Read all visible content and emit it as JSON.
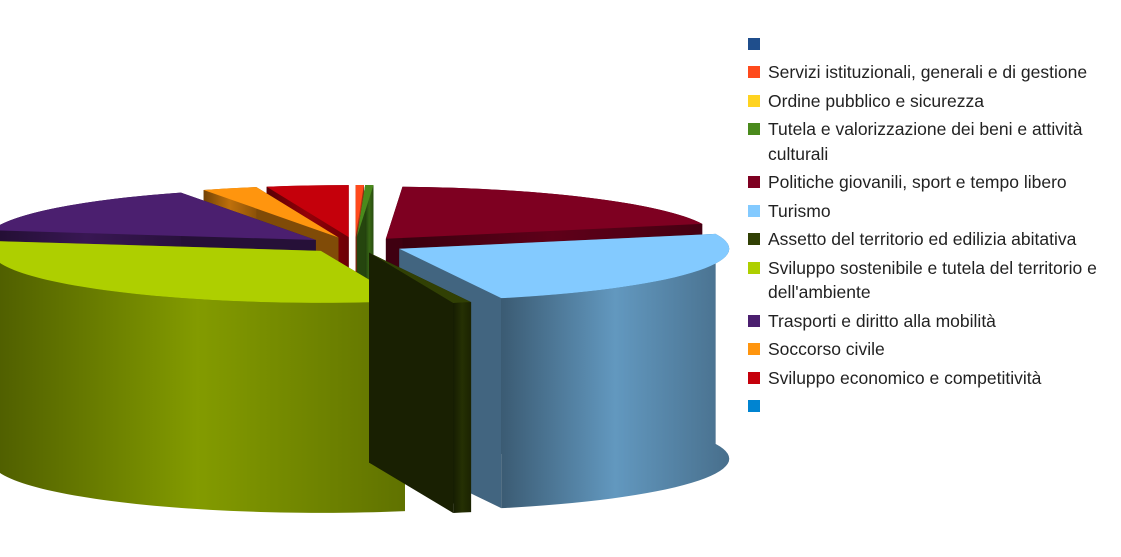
{
  "chart_data": {
    "type": "pie",
    "style": "3d-exploded",
    "slices": [
      {
        "label": "",
        "value": 0.0,
        "color": "#1f4e8c"
      },
      {
        "label": "Servizi istituzionali, generali e di gestione",
        "value": 0.4,
        "color": "#ff4a1c"
      },
      {
        "label": "Ordine pubblico e sicurezza",
        "value": 0.0,
        "color": "#ffd320"
      },
      {
        "label": "Tutela e valorizzazione dei beni e attività culturali",
        "value": 0.4,
        "color": "#4a8a1c"
      },
      {
        "label": "Politiche giovanili, sport e tempo libero",
        "value": 19.6,
        "color": "#7e0021"
      },
      {
        "label": "Turismo",
        "value": 24.6,
        "color": "#83caff"
      },
      {
        "label": "Assetto del territorio ed edilizia abitativa",
        "value": 0.9,
        "color": "#314004"
      },
      {
        "label": "Sviluppo sostenibile e tutela del territorio e dell'ambiente",
        "value": 32.1,
        "color": "#aecf00"
      },
      {
        "label": "Trasporti e diritto alla mobilità",
        "value": 15.3,
        "color": "#4b1f6f"
      },
      {
        "label": "Soccorso civile",
        "value": 2.7,
        "color": "#ff950e"
      },
      {
        "label": "Sviluppo economico e competitività",
        "value": 4.0,
        "color": "#c5000b"
      },
      {
        "label": "",
        "value": 0.0,
        "color": "#0084d1"
      }
    ]
  }
}
